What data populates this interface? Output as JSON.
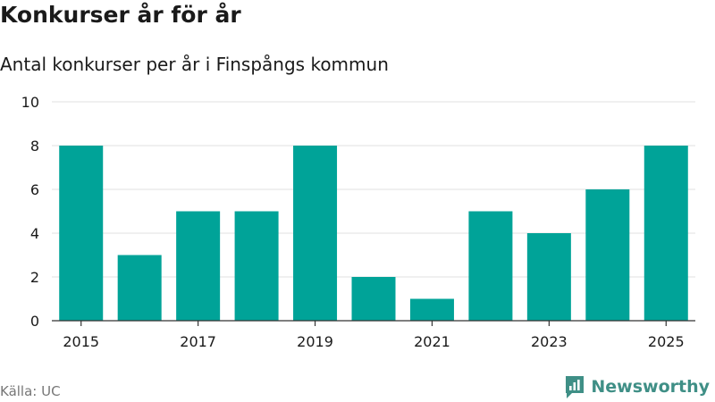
{
  "header": {
    "title": "Konkurser år för år",
    "subtitle": "Antal konkurser per år i Finspångs kommun"
  },
  "footer": {
    "source": "Källa: UC",
    "brand_name": "Newsworthy",
    "brand_icon": "newsworthy-logo-icon"
  },
  "colors": {
    "bar": "#00A398",
    "grid": "#e2e2e2",
    "axis": "#333333",
    "brand": "#3f8f86"
  },
  "chart_data": {
    "type": "bar",
    "title": "Konkurser år för år",
    "subtitle": "Antal konkurser per år i Finspångs kommun",
    "categories": [
      "2015",
      "2016",
      "2017",
      "2018",
      "2019",
      "2020",
      "2021",
      "2022",
      "2023",
      "2024",
      "2025"
    ],
    "values": [
      8,
      3,
      5,
      5,
      8,
      2,
      1,
      5,
      4,
      6,
      8
    ],
    "x_tick_labels": [
      "2015",
      "2017",
      "2019",
      "2021",
      "2023",
      "2025"
    ],
    "y_ticks": [
      0,
      2,
      4,
      6,
      8,
      10
    ],
    "ylim": [
      0,
      10
    ],
    "xlabel": "",
    "ylabel": "",
    "grid": true,
    "legend": "none"
  }
}
